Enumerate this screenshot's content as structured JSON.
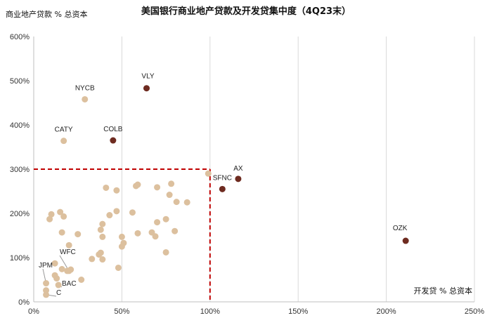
{
  "chart_data": {
    "type": "scatter",
    "title": "美国银行商业地产贷款及开发贷集中度（4Q23末）",
    "xlabel": "开发贷 % 总资本",
    "ylabel": "商业地产贷款 % 总资本",
    "xlim": [
      0,
      250
    ],
    "ylim": [
      0,
      600
    ],
    "xticks": [
      "0%",
      "50%",
      "100%",
      "150%",
      "200%",
      "250%"
    ],
    "yticks": [
      "0%",
      "100%",
      "200%",
      "300%",
      "400%",
      "500%",
      "600%"
    ],
    "grid": "vertical",
    "reference_lines": {
      "x": 100,
      "y": 300,
      "color": "#c00000",
      "style": "dashed"
    },
    "colors": {
      "highlight": "#6e2b20",
      "other": "#dcc09e",
      "leader": "#999999"
    },
    "highlighted_points": [
      {
        "label": "VLY",
        "x": 64,
        "y": 483
      },
      {
        "label": "COLB",
        "x": 45,
        "y": 365
      },
      {
        "label": "AX",
        "x": 116,
        "y": 278
      },
      {
        "label": "SFNC",
        "x": 107,
        "y": 255
      },
      {
        "label": "OZK",
        "x": 211,
        "y": 138
      }
    ],
    "labeled_points": [
      {
        "label": "NYCB",
        "x": 29,
        "y": 458
      },
      {
        "label": "CATY",
        "x": 17,
        "y": 364
      },
      {
        "label": "WFC",
        "x": 20,
        "y": 70
      },
      {
        "label": "JPM",
        "x": 7,
        "y": 42
      },
      {
        "label": "BAC",
        "x": 14,
        "y": 38
      },
      {
        "label": "C",
        "x": 7,
        "y": 16
      }
    ],
    "other_points": [
      {
        "x": 99,
        "y": 290
      },
      {
        "x": 59,
        "y": 265
      },
      {
        "x": 58,
        "y": 262
      },
      {
        "x": 78,
        "y": 267
      },
      {
        "x": 41,
        "y": 258
      },
      {
        "x": 47,
        "y": 252
      },
      {
        "x": 70,
        "y": 259
      },
      {
        "x": 77,
        "y": 242
      },
      {
        "x": 81,
        "y": 226
      },
      {
        "x": 87,
        "y": 225
      },
      {
        "x": 47,
        "y": 205
      },
      {
        "x": 43,
        "y": 196
      },
      {
        "x": 56,
        "y": 202
      },
      {
        "x": 10,
        "y": 198
      },
      {
        "x": 9,
        "y": 187
      },
      {
        "x": 15,
        "y": 203
      },
      {
        "x": 17,
        "y": 193
      },
      {
        "x": 39,
        "y": 176
      },
      {
        "x": 38,
        "y": 163
      },
      {
        "x": 39,
        "y": 147
      },
      {
        "x": 16,
        "y": 157
      },
      {
        "x": 25,
        "y": 153
      },
      {
        "x": 20,
        "y": 128
      },
      {
        "x": 50,
        "y": 147
      },
      {
        "x": 50,
        "y": 125
      },
      {
        "x": 51,
        "y": 133
      },
      {
        "x": 59,
        "y": 155
      },
      {
        "x": 67,
        "y": 157
      },
      {
        "x": 70,
        "y": 180
      },
      {
        "x": 75,
        "y": 187
      },
      {
        "x": 69,
        "y": 148
      },
      {
        "x": 80,
        "y": 160
      },
      {
        "x": 75,
        "y": 112
      },
      {
        "x": 38,
        "y": 111
      },
      {
        "x": 37,
        "y": 107
      },
      {
        "x": 39,
        "y": 96
      },
      {
        "x": 33,
        "y": 97
      },
      {
        "x": 48,
        "y": 77
      },
      {
        "x": 27,
        "y": 50
      },
      {
        "x": 12,
        "y": 87
      },
      {
        "x": 21,
        "y": 73
      },
      {
        "x": 19,
        "y": 70
      },
      {
        "x": 16,
        "y": 74
      },
      {
        "x": 13,
        "y": 53
      },
      {
        "x": 12,
        "y": 60
      },
      {
        "x": 7,
        "y": 26
      }
    ]
  }
}
